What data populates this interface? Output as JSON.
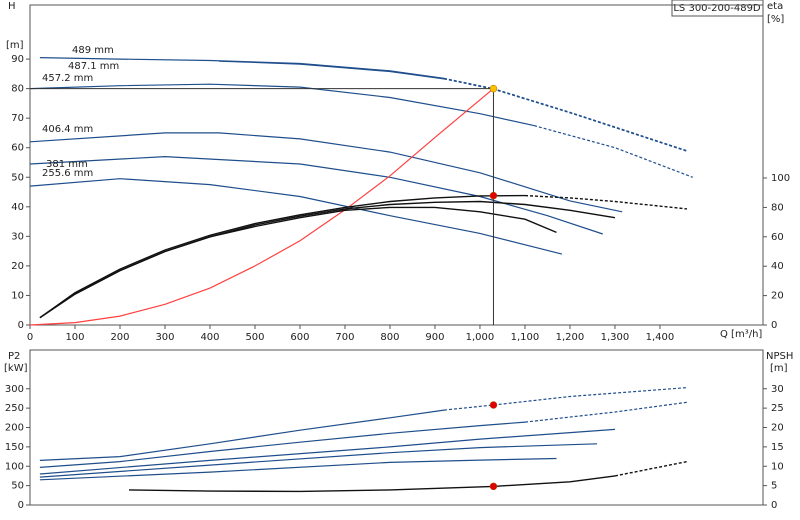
{
  "title_box": "LS 300-200-489D",
  "chart_data": [
    {
      "type": "line",
      "y_label": "H",
      "y_unit": "[m]",
      "y2_label": "eta",
      "y2_unit": "[%]",
      "x_label": "Q [m³/h]",
      "xlim": [
        0,
        1629
      ],
      "ylim": [
        0,
        108.3
      ],
      "y2lim": [
        0,
        217.7
      ],
      "xticks": [
        0,
        100,
        200,
        300,
        400,
        500,
        600,
        700,
        800,
        900,
        {
          "value": 1000,
          "label": "1,000"
        },
        {
          "value": 1100,
          "label": "1,100"
        },
        {
          "value": 1200,
          "label": "1,200"
        },
        {
          "value": 1300,
          "label": "1,300"
        },
        {
          "value": 1400,
          "label": "1,400"
        }
      ],
      "yticks": [
        0,
        10,
        20,
        30,
        40,
        50,
        60,
        70,
        80,
        90
      ],
      "y2ticks": [
        0,
        20,
        40,
        60,
        80,
        100
      ],
      "series": [
        {
          "name": "489 mm",
          "color": "#1f4e8c",
          "dash_from": 920,
          "x": [
            22,
            200,
            400,
            600,
            800,
            920,
            1030,
            1200,
            1300,
            1460
          ],
          "values": [
            90.5,
            90,
            89.5,
            88.5,
            86,
            83.5,
            80,
            72,
            67,
            59
          ]
        },
        {
          "name": "487.1 mm",
          "color": "#1f4e8c",
          "dash_from": 920,
          "x": [
            420,
            600,
            800,
            920,
            1030,
            1200,
            1300,
            1460
          ],
          "values": [
            89.3,
            88.3,
            85.8,
            83.3,
            79.8,
            71.8,
            66.8,
            58.8
          ]
        },
        {
          "name": "457.2 mm",
          "color": "#1f4e8c",
          "dash_from": 1120,
          "x": [
            0,
            200,
            400,
            600,
            800,
            1000,
            1120,
            1300,
            1473
          ],
          "values": [
            80,
            81,
            81.5,
            80.5,
            77,
            71.5,
            67.5,
            60,
            50
          ]
        },
        {
          "name": "406.4 mm",
          "color": "#1f4e8c",
          "x": [
            0,
            300,
            420,
            600,
            800,
            1000,
            1200,
            1316
          ],
          "values": [
            62,
            65,
            65,
            63,
            58.5,
            51.5,
            42,
            38.3
          ]
        },
        {
          "name": "381 mm",
          "color": "#1f4e8c",
          "x": [
            0,
            300,
            600,
            800,
            1000,
            1150,
            1273
          ],
          "values": [
            54.5,
            57,
            54.5,
            50,
            43.5,
            37,
            30.8
          ]
        },
        {
          "name": "255.6 mm",
          "color": "#1f4e8c",
          "x": [
            0,
            200,
            400,
            600,
            800,
            1000,
            1182
          ],
          "values": [
            47,
            49.5,
            47.5,
            43.5,
            37,
            31,
            24
          ]
        },
        {
          "color": "#ff4040",
          "x": [
            0,
            100,
            200,
            300,
            400,
            500,
            600,
            700,
            800,
            900,
            1030
          ],
          "values": [
            0,
            0.8,
            3,
            7,
            12.5,
            20,
            28.5,
            39,
            50.5,
            63.5,
            80
          ]
        },
        {
          "color": "#111111",
          "axis": "y2",
          "dash_from": 1100,
          "x": [
            22,
            100,
            200,
            300,
            400,
            500,
            600,
            700,
            800,
            900,
            1000,
            1100,
            1200,
            1300,
            1460
          ],
          "values": [
            5,
            22,
            38,
            51,
            61,
            69,
            75,
            80,
            84,
            86.5,
            87.8,
            88,
            86.5,
            84,
            79
          ]
        },
        {
          "color": "#111111",
          "axis": "y2",
          "x": [
            22,
            100,
            200,
            300,
            400,
            500,
            600,
            700,
            800,
            900,
            1000,
            1100,
            1200,
            1300
          ],
          "values": [
            5,
            21,
            37,
            50,
            60,
            68,
            74,
            79,
            82,
            83.5,
            84,
            82,
            78,
            73
          ]
        },
        {
          "color": "#111111",
          "axis": "y2",
          "x": [
            22,
            100,
            200,
            300,
            400,
            500,
            600,
            700,
            800,
            900,
            1000,
            1100,
            1170
          ],
          "values": [
            5,
            21,
            37,
            50,
            60,
            67,
            73,
            78,
            80,
            80,
            77,
            72,
            63
          ]
        },
        {
          "color": "#ffc000",
          "marker": "circle",
          "crosshair": true,
          "x": [
            1030
          ],
          "values": [
            80
          ]
        },
        {
          "color": "#e00000",
          "marker": "circle",
          "axis": "y2",
          "x": [
            1030
          ],
          "values": [
            88
          ]
        }
      ]
    },
    {
      "type": "line",
      "y_label": "P2",
      "y_unit": "[kW]",
      "y2_label": "NPSH",
      "y2_unit": "[m]",
      "xlim": [
        0,
        1629
      ],
      "ylim": [
        0,
        400
      ],
      "y2lim": [
        0,
        40
      ],
      "yticks": [
        0,
        50,
        100,
        150,
        200,
        250,
        300
      ],
      "y2ticks": [
        0,
        5,
        10,
        15,
        20,
        25,
        30
      ],
      "series": [
        {
          "color": "#1f4e8c",
          "dash_from": 920,
          "x": [
            22,
            200,
            400,
            600,
            800,
            920,
            1030,
            1200,
            1460
          ],
          "values": [
            115,
            125,
            158,
            193,
            225,
            245,
            258,
            280,
            303
          ]
        },
        {
          "color": "#1f4e8c",
          "dash_from": 1100,
          "x": [
            22,
            200,
            400,
            600,
            800,
            1000,
            1100,
            1300,
            1460
          ],
          "values": [
            97,
            112,
            138,
            162,
            185,
            205,
            214,
            240,
            265
          ]
        },
        {
          "color": "#1f4e8c",
          "x": [
            22,
            400,
            800,
            1000,
            1300
          ],
          "values": [
            80,
            115,
            150,
            170,
            195
          ]
        },
        {
          "color": "#1f4e8c",
          "x": [
            22,
            400,
            800,
            1000,
            1260
          ],
          "values": [
            72,
            103,
            135,
            148,
            158
          ]
        },
        {
          "color": "#1f4e8c",
          "x": [
            22,
            400,
            800,
            1000,
            1170
          ],
          "values": [
            65,
            85,
            110,
            116,
            120
          ]
        },
        {
          "color": "#111111",
          "axis": "y2",
          "dash_from": 1300,
          "x": [
            220,
            400,
            600,
            800,
            1030,
            1200,
            1300,
            1460
          ],
          "values": [
            3.9,
            3.6,
            3.5,
            3.9,
            4.8,
            6,
            7.5,
            11.2
          ]
        },
        {
          "color": "#e00000",
          "marker": "circle",
          "x": [
            1030
          ],
          "values": [
            258
          ]
        },
        {
          "color": "#e00000",
          "marker": "circle",
          "axis": "y2",
          "x": [
            1030
          ],
          "values": [
            4.8
          ]
        }
      ]
    }
  ]
}
